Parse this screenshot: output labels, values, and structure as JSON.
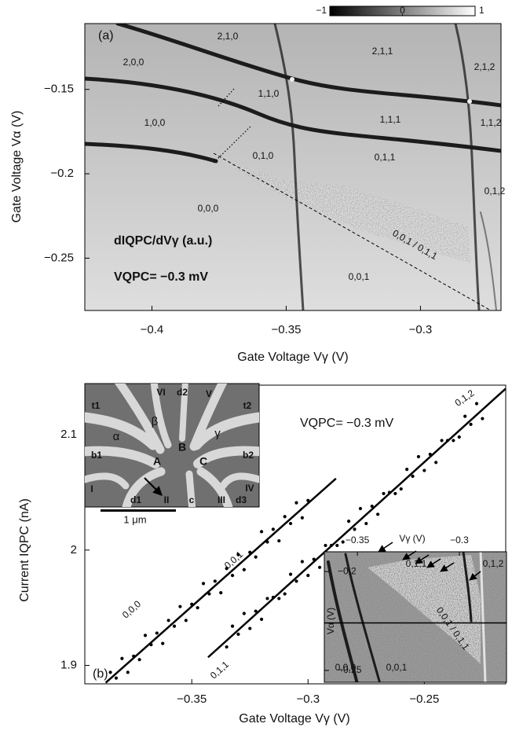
{
  "chart_data": [
    {
      "type": "image",
      "panel_label": "(a)",
      "xlabel": "Gate Voltage Vγ (V)",
      "ylabel": "Gate Voltage Vα (V)",
      "xlim": [
        -0.425,
        -0.27
      ],
      "ylim": [
        -0.281,
        -0.111
      ],
      "xticks": [
        {
          "value": -0.4,
          "label": "−0.4"
        },
        {
          "value": -0.35,
          "label": "−0.35"
        },
        {
          "value": -0.3,
          "label": "−0.3"
        }
      ],
      "yticks": [
        {
          "value": -0.25,
          "label": "−0.25"
        },
        {
          "value": -0.2,
          "label": "−0.2"
        },
        {
          "value": -0.15,
          "label": "−0.15"
        }
      ],
      "clim": [
        -1,
        1
      ],
      "cticks": [
        {
          "value": -1,
          "label": "−1"
        },
        0,
        1
      ],
      "colormap": [
        "#000000",
        "#ffffff"
      ],
      "annotations": [
        "dIQPC/dVγ (a.u.)",
        "VQPC= −0.3 mV"
      ],
      "state_labels": [
        "2,1,0",
        "2,0,0",
        "1,1,0",
        "1,0,0",
        "0,1,0",
        "0,0,0",
        "2,1,1",
        "1,1,1",
        "0,1,1",
        "2,1,2",
        "1,1,2",
        "0,1,2",
        "0,0,1",
        "0,0,1 / 0,1,1"
      ]
    },
    {
      "type": "scatter",
      "panel_label": "(b)",
      "xlabel": "Gate Voltage Vγ (V)",
      "ylabel": "Current IQPC (nA)",
      "xlim": [
        -0.396,
        -0.215
      ],
      "ylim": [
        1.884,
        2.143
      ],
      "xticks": [
        {
          "value": -0.35,
          "label": "−0.35"
        },
        {
          "value": -0.3,
          "label": "−0.3"
        },
        {
          "value": -0.25,
          "label": "−0.25"
        }
      ],
      "yticks": [
        1.9,
        2,
        2.1
      ],
      "annotation": "VQPC= −0.3 mV",
      "series": [
        {
          "color": "#000000",
          "x": [
            -0.385,
            -0.3825,
            -0.38,
            -0.3775,
            -0.375,
            -0.3725,
            -0.37,
            -0.3675,
            -0.365,
            -0.3625,
            -0.36,
            -0.3575,
            -0.355,
            -0.3525,
            -0.35,
            -0.3475,
            -0.345,
            -0.3425,
            -0.34,
            -0.3375,
            -0.335,
            -0.3325,
            -0.33,
            -0.3275,
            -0.325,
            -0.3225,
            -0.32,
            -0.3175,
            -0.315,
            -0.3125,
            -0.31,
            -0.3075,
            -0.305,
            -0.3025,
            -0.3
          ],
          "values": [
            1.894,
            1.889,
            1.906,
            1.894,
            1.908,
            1.905,
            1.926,
            1.918,
            1.928,
            1.919,
            1.939,
            1.934,
            1.951,
            1.939,
            1.953,
            1.95,
            1.971,
            1.962,
            1.973,
            1.963,
            1.984,
            1.978,
            1.996,
            1.983,
            1.998,
            1.994,
            2.016,
            2.007,
            2.018,
            2.008,
            2.029,
            2.023,
            2.041,
            2.028,
            2.043
          ]
        },
        {
          "color": "#000000",
          "x": [
            -0.335,
            -0.3325,
            -0.33,
            -0.3275,
            -0.325,
            -0.3225,
            -0.32,
            -0.3175,
            -0.315,
            -0.3125,
            -0.31,
            -0.3075,
            -0.305,
            -0.3025,
            -0.3,
            -0.2975,
            -0.295,
            -0.2925,
            -0.29,
            -0.2875,
            -0.285,
            -0.2825,
            -0.28,
            -0.2775,
            -0.275,
            -0.2725,
            -0.27,
            -0.2675,
            -0.265,
            -0.2625,
            -0.26,
            -0.2575,
            -0.255,
            -0.2525,
            -0.25,
            -0.2475,
            -0.245,
            -0.2425,
            -0.24,
            -0.2375,
            -0.235,
            -0.2325,
            -0.23,
            -0.2275,
            -0.225
          ],
          "values": [
            1.916,
            1.934,
            1.927,
            1.945,
            1.932,
            1.947,
            1.94,
            1.958,
            1.959,
            1.958,
            1.962,
            1.979,
            1.973,
            1.99,
            1.978,
            1.992,
            1.985,
            2.004,
            2.004,
            2.004,
            2.007,
            2.025,
            2.018,
            2.036,
            2.023,
            2.038,
            2.031,
            2.049,
            2.05,
            2.049,
            2.053,
            2.07,
            2.064,
            2.081,
            2.069,
            2.083,
            2.076,
            2.095,
            2.095,
            2.095,
            2.098,
            2.116,
            2.109,
            2.127,
            2.114
          ]
        }
      ],
      "fit_lines": [
        {
          "x": [
            -0.387,
            -0.288
          ],
          "values": [
            1.885,
            2.062
          ]
        },
        {
          "x": [
            -0.343,
            -0.215
          ],
          "values": [
            1.907,
            2.14
          ]
        }
      ],
      "fit_labels": [
        "0,0,0",
        "0,0,1",
        "0,1,1",
        "0,1,2"
      ],
      "sem_labels": [
        "t1",
        "VI",
        "d2",
        "V",
        "t2",
        "α",
        "β",
        "γ",
        "b1",
        "A",
        "B",
        "C",
        "b2",
        "I",
        "II",
        "c",
        "III",
        "d3",
        "IV",
        "d1"
      ],
      "scale_bar_label": "1 μm"
    },
    {
      "type": "image",
      "xlabel": "Vγ (V)",
      "ylabel": "Vα (V)",
      "xlim": [
        -0.3662,
        -0.2769
      ],
      "ylim": [
        -0.256,
        -0.19
      ],
      "xticks": [
        {
          "value": -0.35,
          "label": "−0.35"
        },
        {
          "value": -0.3,
          "label": "−0.3"
        }
      ],
      "yticks": [
        {
          "value": -0.25,
          "label": "−0.25"
        },
        {
          "value": -0.2,
          "label": "−0.2"
        }
      ],
      "cut_line": -0.226,
      "state_labels": [
        "0,1,1",
        "0,1,2",
        "0,0,0",
        "0,0,1",
        "0,0,1 / 0,1,1"
      ]
    }
  ]
}
